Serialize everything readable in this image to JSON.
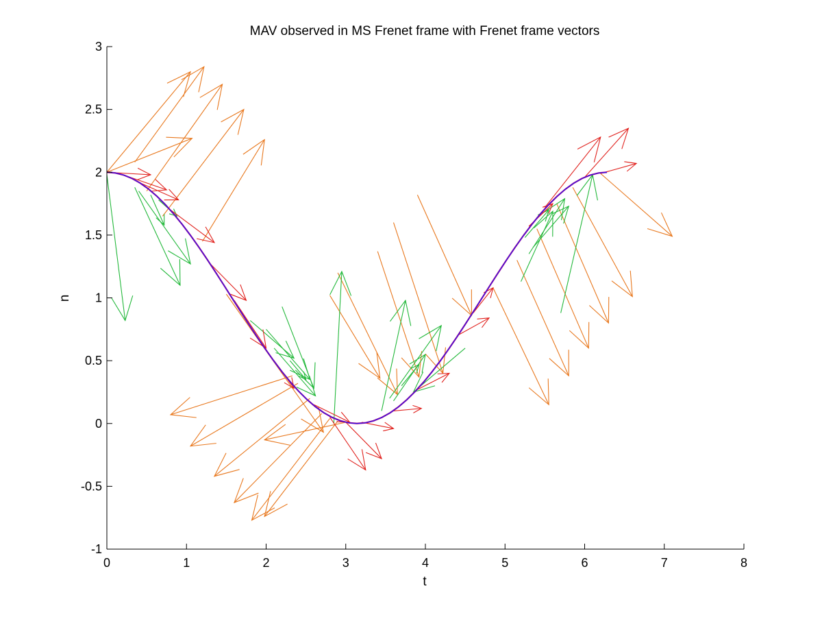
{
  "chart_data": {
    "type": "line",
    "title": "MAV observed in MS Frenet frame with Frenet frame vectors",
    "xlabel": "t",
    "ylabel": "n",
    "xlim": [
      0,
      8
    ],
    "ylim": [
      -1,
      3
    ],
    "x_ticks": [
      0,
      1,
      2,
      3,
      4,
      5,
      6,
      7,
      8
    ],
    "x_tick_labels": [
      "0",
      "1",
      "2",
      "3",
      "4",
      "5",
      "6",
      "7",
      "8"
    ],
    "y_ticks": [
      -1,
      -0.5,
      0,
      0.5,
      1,
      1.5,
      2,
      2.5,
      3
    ],
    "y_tick_labels": [
      "-1",
      "-0.5",
      "0",
      "0.5",
      "1",
      "1.5",
      "2",
      "2.5",
      "3"
    ],
    "grid": false,
    "box": "left-bottom axes only",
    "colors": {
      "curve": "#1a1aff",
      "curve_overlay": "#b0007a",
      "red_vectors": "#e0201c",
      "orange_vectors": "#e8781e",
      "green_vectors": "#22b83a"
    },
    "curve": {
      "name": "",
      "description_formula": "n = 1 + cos(t)",
      "x_start": 0,
      "x_end": 6.28,
      "samples": 60
    },
    "vector_sets": [
      {
        "color_key": "red_vectors",
        "note": "tangent vectors along curve",
        "vectors": [
          {
            "x0": 0.0,
            "y0": 2.0,
            "x1": 0.55,
            "y1": 1.98
          },
          {
            "x0": 0.2,
            "y0": 1.98,
            "x1": 0.75,
            "y1": 1.86
          },
          {
            "x0": 0.4,
            "y0": 1.92,
            "x1": 0.9,
            "y1": 1.78
          },
          {
            "x0": 0.8,
            "y0": 1.7,
            "x1": 1.35,
            "y1": 1.44
          },
          {
            "x0": 1.3,
            "y0": 1.27,
            "x1": 1.75,
            "y1": 0.98
          },
          {
            "x0": 1.6,
            "y0": 0.98,
            "x1": 2.0,
            "y1": 0.6
          },
          {
            "x0": 2.1,
            "y0": 0.5,
            "x1": 2.35,
            "y1": 0.28
          },
          {
            "x0": 2.6,
            "y0": 0.15,
            "x1": 3.05,
            "y1": 0.01
          },
          {
            "x0": 2.8,
            "y0": 0.05,
            "x1": 3.25,
            "y1": -0.37
          },
          {
            "x0": 3.0,
            "y0": 0.01,
            "x1": 3.45,
            "y1": -0.28
          },
          {
            "x0": 3.2,
            "y0": 0.01,
            "x1": 3.6,
            "y1": -0.04
          },
          {
            "x0": 3.6,
            "y0": 0.1,
            "x1": 3.95,
            "y1": 0.12
          },
          {
            "x0": 3.9,
            "y0": 0.27,
            "x1": 4.3,
            "y1": 0.4
          },
          {
            "x0": 4.4,
            "y0": 0.7,
            "x1": 4.8,
            "y1": 0.84
          },
          {
            "x0": 4.6,
            "y0": 0.88,
            "x1": 4.85,
            "y1": 1.08
          },
          {
            "x0": 5.3,
            "y0": 1.57,
            "x1": 5.6,
            "y1": 1.75
          },
          {
            "x0": 5.5,
            "y0": 1.72,
            "x1": 6.2,
            "y1": 2.28
          },
          {
            "x0": 6.0,
            "y0": 1.96,
            "x1": 6.55,
            "y1": 2.35
          },
          {
            "x0": 6.2,
            "y0": 1.99,
            "x1": 6.65,
            "y1": 2.07
          }
        ]
      },
      {
        "color_key": "orange_vectors",
        "note": "normal vectors",
        "vectors": [
          {
            "x0": 0.0,
            "y0": 2.0,
            "x1": 1.07,
            "y1": 2.27
          },
          {
            "x0": 0.0,
            "y0": 2.0,
            "x1": 1.05,
            "y1": 2.8
          },
          {
            "x0": 0.35,
            "y0": 2.08,
            "x1": 1.22,
            "y1": 2.84
          },
          {
            "x0": 0.5,
            "y0": 1.85,
            "x1": 1.45,
            "y1": 2.7
          },
          {
            "x0": 0.7,
            "y0": 1.65,
            "x1": 1.72,
            "y1": 2.5
          },
          {
            "x0": 1.2,
            "y0": 1.45,
            "x1": 1.98,
            "y1": 2.26
          },
          {
            "x0": 2.33,
            "y0": 0.38,
            "x1": 0.8,
            "y1": 0.07
          },
          {
            "x0": 2.4,
            "y0": 0.32,
            "x1": 1.05,
            "y1": -0.18
          },
          {
            "x0": 2.55,
            "y0": 0.2,
            "x1": 1.35,
            "y1": -0.42
          },
          {
            "x0": 2.7,
            "y0": 0.08,
            "x1": 1.6,
            "y1": -0.63
          },
          {
            "x0": 2.8,
            "y0": 0.04,
            "x1": 1.82,
            "y1": -0.77
          },
          {
            "x0": 2.9,
            "y0": 0.02,
            "x1": 1.98,
            "y1": -0.74
          },
          {
            "x0": 3.0,
            "y0": 0.01,
            "x1": 1.98,
            "y1": -0.13
          },
          {
            "x0": 1.5,
            "y0": 1.03,
            "x1": 2.72,
            "y1": -0.07
          },
          {
            "x0": 2.8,
            "y0": 1.02,
            "x1": 3.43,
            "y1": 0.36
          },
          {
            "x0": 2.9,
            "y0": 1.2,
            "x1": 3.65,
            "y1": 0.23
          },
          {
            "x0": 3.4,
            "y0": 1.37,
            "x1": 3.92,
            "y1": 0.37
          },
          {
            "x0": 3.6,
            "y0": 1.6,
            "x1": 4.22,
            "y1": 0.4
          },
          {
            "x0": 3.9,
            "y0": 1.82,
            "x1": 4.58,
            "y1": 0.86
          },
          {
            "x0": 4.85,
            "y0": 1.08,
            "x1": 5.55,
            "y1": 0.15
          },
          {
            "x0": 5.15,
            "y0": 1.3,
            "x1": 5.8,
            "y1": 0.38
          },
          {
            "x0": 5.4,
            "y0": 1.55,
            "x1": 6.05,
            "y1": 0.6
          },
          {
            "x0": 5.65,
            "y0": 1.75,
            "x1": 6.3,
            "y1": 0.8
          },
          {
            "x0": 5.85,
            "y0": 1.88,
            "x1": 6.6,
            "y1": 1.01
          },
          {
            "x0": 6.2,
            "y0": 1.99,
            "x1": 7.1,
            "y1": 1.49
          }
        ]
      },
      {
        "color_key": "green_vectors",
        "note": "binormal-like vectors",
        "vectors": [
          {
            "x0": 0.0,
            "y0": 1.98,
            "x1": 0.23,
            "y1": 0.82
          },
          {
            "x0": 0.35,
            "y0": 1.88,
            "x1": 0.92,
            "y1": 1.1
          },
          {
            "x0": 0.4,
            "y0": 1.85,
            "x1": 1.05,
            "y1": 1.27
          },
          {
            "x0": 0.55,
            "y0": 1.82,
            "x1": 0.72,
            "y1": 1.58
          },
          {
            "x0": 0.65,
            "y0": 1.78,
            "x1": 0.88,
            "y1": 1.65
          },
          {
            "x0": 1.8,
            "y0": 0.82,
            "x1": 2.35,
            "y1": 0.52
          },
          {
            "x0": 2.0,
            "y0": 0.75,
            "x1": 2.55,
            "y1": 0.35
          },
          {
            "x0": 2.1,
            "y0": 0.6,
            "x1": 2.62,
            "y1": 0.22
          },
          {
            "x0": 2.2,
            "y0": 0.93,
            "x1": 2.6,
            "y1": 0.28
          },
          {
            "x0": 2.3,
            "y0": 0.5,
            "x1": 2.5,
            "y1": 0.35
          },
          {
            "x0": 2.85,
            "y0": 0.0,
            "x1": 2.95,
            "y1": 1.21
          },
          {
            "x0": 3.45,
            "y0": 0.1,
            "x1": 3.75,
            "y1": 0.98
          },
          {
            "x0": 3.55,
            "y0": 0.2,
            "x1": 4.2,
            "y1": 0.78
          },
          {
            "x0": 3.6,
            "y0": 0.18,
            "x1": 4.0,
            "y1": 0.55
          },
          {
            "x0": 3.7,
            "y0": 0.3,
            "x1": 3.92,
            "y1": 0.47
          },
          {
            "x0": 4.5,
            "y0": 0.6,
            "x1": 3.85,
            "y1": 0.25
          },
          {
            "x0": 5.2,
            "y0": 1.13,
            "x1": 5.6,
            "y1": 1.69
          },
          {
            "x0": 5.3,
            "y0": 1.35,
            "x1": 5.75,
            "y1": 1.79
          },
          {
            "x0": 5.35,
            "y0": 1.4,
            "x1": 5.8,
            "y1": 1.73
          },
          {
            "x0": 5.7,
            "y0": 0.88,
            "x1": 6.1,
            "y1": 1.98
          },
          {
            "x0": 5.25,
            "y0": 1.48,
            "x1": 5.55,
            "y1": 1.7
          }
        ]
      }
    ]
  }
}
